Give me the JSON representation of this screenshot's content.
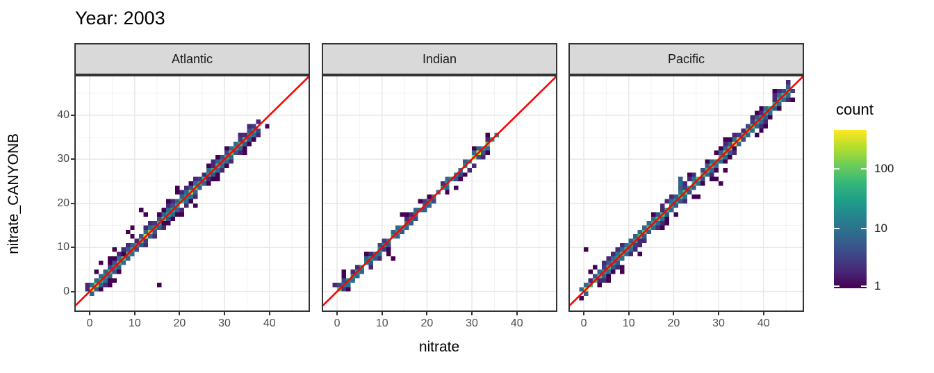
{
  "title": "Year: 2003",
  "axes": {
    "x_title": "nitrate",
    "y_title": "nitrate_CANYONB",
    "x_tick_labels": [
      "0",
      "10",
      "20",
      "30",
      "40"
    ],
    "y_tick_labels": [
      "0",
      "10",
      "20",
      "30",
      "40"
    ]
  },
  "legend": {
    "title": "count",
    "tick_labels": [
      "100",
      "10",
      "1"
    ],
    "tick_values": [
      100,
      10,
      1
    ]
  },
  "colors": {
    "background": "#ffffff",
    "panel_border": "#333333",
    "strip_background": "#d9d9d9",
    "grid_major": "#e9e9e9",
    "grid_minor": "#f2f2f2",
    "tick_label": "#4d4d4d",
    "tick_mark": "#333333",
    "reference_line": "#ff0000"
  },
  "chart_data": {
    "type": "heatmap",
    "subtype": "2d-binned scatter (geom_bin2d, 1x1 bins) of predicted vs observed nitrate, fill = count on log10 scale (viridis), faceted by ocean basin",
    "title": "Year: 2003",
    "xlabel": "nitrate",
    "ylabel": "nitrate_CANYONB",
    "xlim": [
      -3.1,
      48.7
    ],
    "ylim": [
      -4.3,
      48.8
    ],
    "x_major_ticks": [
      0,
      10,
      20,
      30,
      40
    ],
    "x_minor_ticks": [
      5,
      15,
      25,
      35,
      45
    ],
    "y_major_ticks": [
      0,
      10,
      20,
      30,
      40
    ],
    "y_minor_ticks": [
      5,
      15,
      25,
      35,
      45
    ],
    "bin_size": 1,
    "count_domain": [
      1,
      450
    ],
    "count_scale": "log10",
    "legend_position": "right",
    "grid": true,
    "ref_line": {
      "equation": "y = x",
      "color": "#ff0000"
    },
    "color_scale": {
      "name": "viridis",
      "stops": [
        "#440154",
        "#482878",
        "#3e4989",
        "#31688e",
        "#26828e",
        "#1f9e89",
        "#35b779",
        "#6dcd59",
        "#b4de2c",
        "#fde725"
      ]
    },
    "facets": [
      {
        "key": "atlantic",
        "name": "Atlantic",
        "seed": 11,
        "diag_range": [
          0,
          37
        ],
        "diag_base_count": 38,
        "origin_count": 430,
        "hotspots": [
          [
            1,
            150
          ],
          [
            12,
            260
          ],
          [
            13,
            180
          ],
          [
            22,
            160
          ],
          [
            23,
            120
          ]
        ],
        "spread_probs": [
          0.72,
          0.28,
          0.07
        ],
        "outliers": [
          [
            15.5,
            1.5
          ],
          [
            11.2,
            18
          ],
          [
            12.8,
            17.4
          ],
          [
            8.2,
            13.6
          ],
          [
            5.2,
            9.8
          ],
          [
            9.3,
            14.6
          ],
          [
            4.4,
            1.2
          ],
          [
            19,
            23.5
          ],
          [
            23.5,
            19.5
          ],
          [
            2.5,
            6.2
          ]
        ]
      },
      {
        "key": "indian",
        "name": "Indian",
        "seed": 22,
        "diag_range": [
          0,
          36
        ],
        "diag_base_count": 14,
        "origin_count": 90,
        "hotspots": [
          [
            30,
            190
          ],
          [
            31,
            230
          ],
          [
            33,
            110
          ]
        ],
        "spread_probs": [
          0.38,
          0.07,
          0.01
        ],
        "outliers": [
          [
            12.2,
            7.8
          ],
          [
            26.5,
            23.8
          ],
          [
            33.8,
            31.5
          ],
          [
            9.5,
            7.2
          ],
          [
            21.5,
            20.2,
            4
          ],
          [
            21.2,
            21.8,
            3
          ]
        ]
      },
      {
        "key": "pacific",
        "name": "Pacific",
        "seed": 33,
        "diag_range": [
          0,
          46
        ],
        "diag_base_count": 40,
        "origin_count": 320,
        "hotspots": [
          [
            33,
            280
          ],
          [
            34,
            300
          ],
          [
            44,
            60
          ],
          [
            45,
            45
          ]
        ],
        "spread_probs": [
          0.65,
          0.22,
          0.05
        ],
        "outliers": [
          [
            0.3,
            9.4
          ],
          [
            29.2,
            25.6
          ],
          [
            30.6,
            24.6
          ],
          [
            31.4,
            27.5
          ],
          [
            21.4,
            25.3,
            6
          ],
          [
            21.4,
            24.3,
            8
          ],
          [
            21.3,
            23.4,
            6
          ],
          [
            21.4,
            22.5,
            10
          ],
          [
            12.8,
            8.6
          ],
          [
            5.4,
            2.2
          ],
          [
            2.3,
            5.6
          ],
          [
            17.5,
            15.2
          ],
          [
            25.4,
            21.8
          ],
          [
            43.5,
            41.2
          ],
          [
            8.4,
            4.6
          ]
        ]
      }
    ]
  }
}
